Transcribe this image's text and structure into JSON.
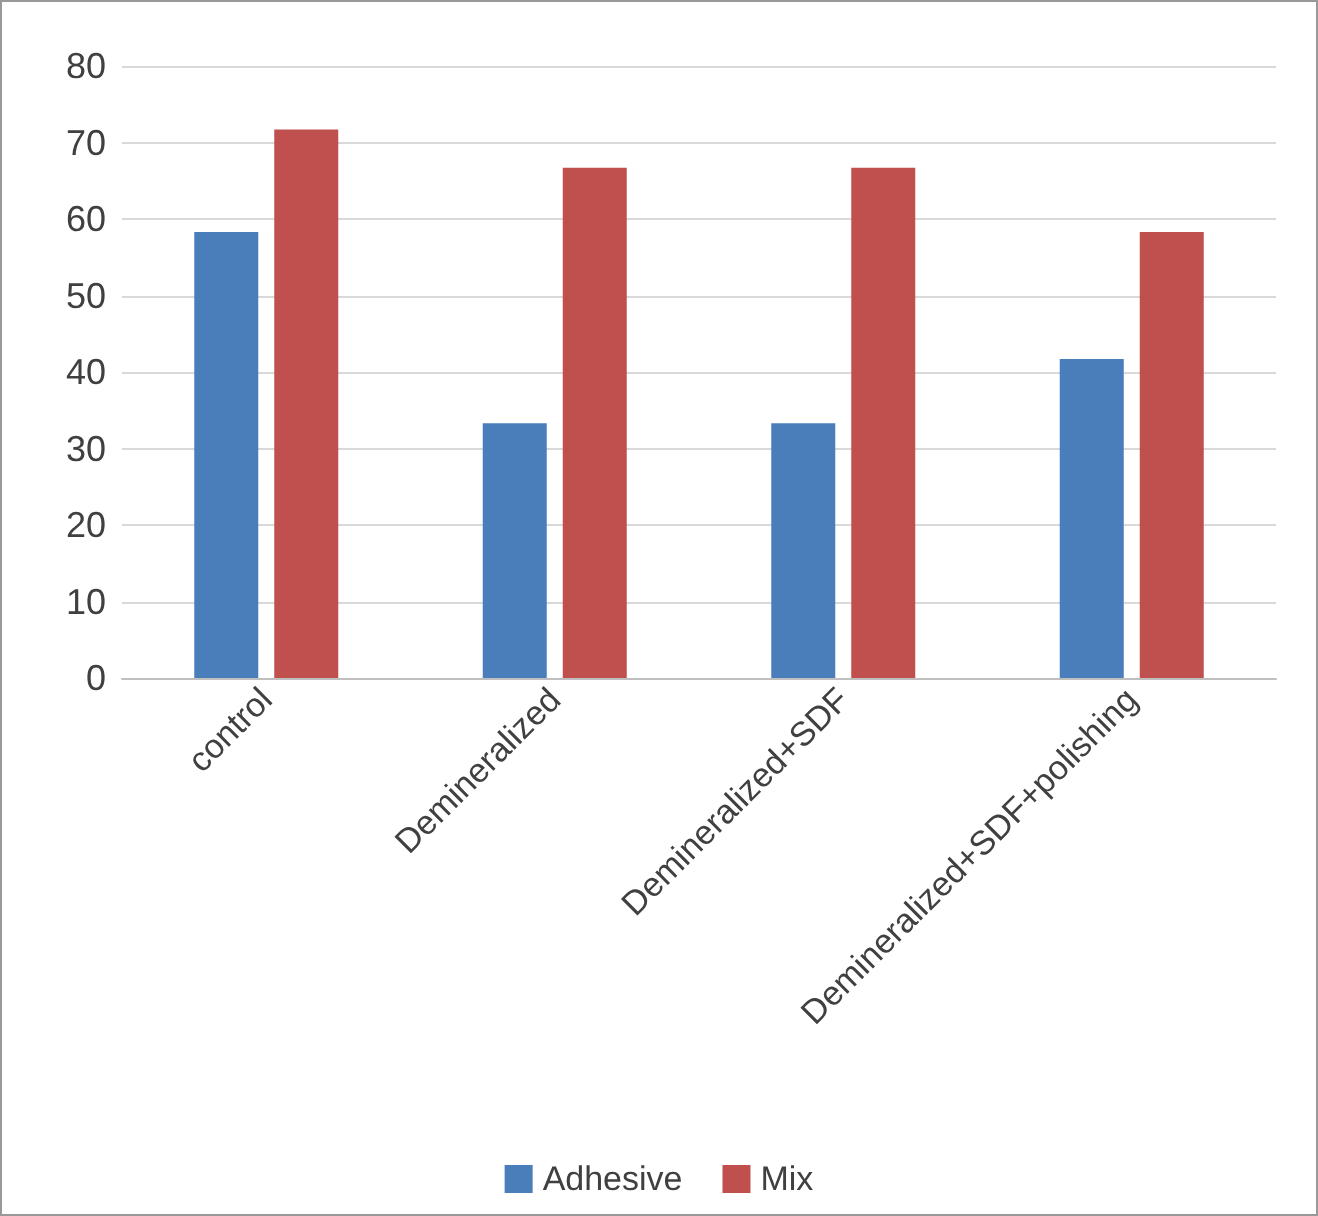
{
  "chart_data": {
    "type": "bar",
    "categories": [
      "control",
      "Demineralized",
      "Demineralized+SDF",
      "Demineralized+SDF+polishing"
    ],
    "series": [
      {
        "name": "Adhesive",
        "color": "#4a7ebb",
        "values": [
          58.3,
          33.3,
          33.3,
          41.7
        ]
      },
      {
        "name": "Mix",
        "color": "#c0504d",
        "values": [
          71.7,
          66.7,
          66.7,
          58.3
        ]
      }
    ],
    "ylim": [
      0,
      80
    ],
    "yticks": [
      0,
      10,
      20,
      30,
      40,
      50,
      60,
      70,
      80
    ],
    "grid": "y",
    "legend": "bottom"
  }
}
